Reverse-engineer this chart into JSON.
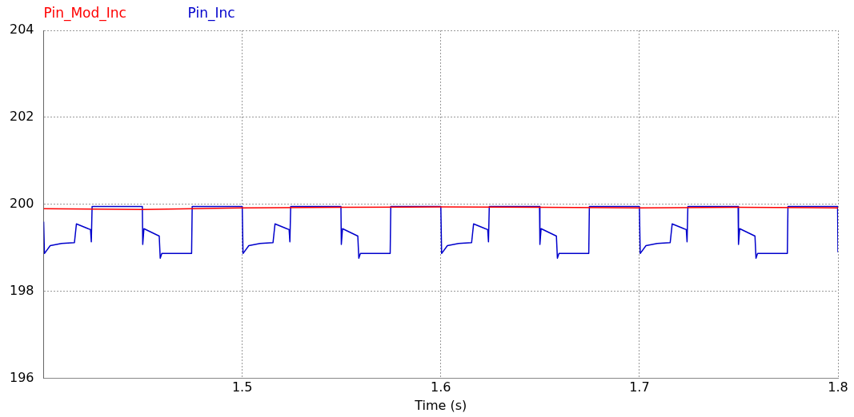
{
  "chart_data": {
    "type": "line",
    "xlabel": "Time (s)",
    "xlim": [
      1.4,
      1.8
    ],
    "xticks": [
      1.5,
      1.6,
      1.7,
      1.8
    ],
    "ylim": [
      196,
      204
    ],
    "yticks": [
      196,
      198,
      200,
      202,
      204
    ],
    "grid": true,
    "legend": "top left",
    "marker": "none",
    "series": [
      {
        "name": "Pin_Mod_Inc",
        "color": "#ff0000",
        "x": [
          1.4,
          1.45,
          1.5,
          1.55,
          1.6,
          1.65,
          1.7,
          1.75,
          1.8
        ],
        "values": [
          199.9,
          199.88,
          199.92,
          199.93,
          199.94,
          199.93,
          199.92,
          199.93,
          199.92
        ]
      },
      {
        "name": "Pin_Inc",
        "color": "#0000cc",
        "x": [
          1.4,
          1.4004,
          1.4033,
          1.409,
          1.4155,
          1.4165,
          1.4224,
          1.4236,
          1.424,
          1.4244,
          1.4497,
          1.4499,
          1.4505,
          1.4582,
          1.4587,
          1.4595,
          1.4745,
          1.4748,
          1.5,
          1.5004,
          1.5033,
          1.509,
          1.5155,
          1.5165,
          1.5224,
          1.5236,
          1.524,
          1.5244,
          1.5497,
          1.5499,
          1.5505,
          1.5582,
          1.5587,
          1.5595,
          1.5745,
          1.5748,
          1.6,
          1.6004,
          1.6033,
          1.609,
          1.6155,
          1.6165,
          1.6224,
          1.6236,
          1.624,
          1.6244,
          1.6497,
          1.6499,
          1.6505,
          1.6582,
          1.6587,
          1.6595,
          1.6745,
          1.6748,
          1.7,
          1.7004,
          1.7033,
          1.709,
          1.7155,
          1.7165,
          1.7224,
          1.7236,
          1.724,
          1.7244,
          1.7497,
          1.7499,
          1.7505,
          1.7582,
          1.7587,
          1.7595,
          1.7745,
          1.7748,
          1.7998,
          1.8
        ],
        "values": [
          199.6,
          198.87,
          199.05,
          199.1,
          199.12,
          199.55,
          199.44,
          199.42,
          199.14,
          199.95,
          199.95,
          199.08,
          199.44,
          199.27,
          198.76,
          198.87,
          198.87,
          199.95,
          199.95,
          198.87,
          199.05,
          199.1,
          199.12,
          199.55,
          199.44,
          199.42,
          199.14,
          199.95,
          199.95,
          199.08,
          199.44,
          199.27,
          198.76,
          198.87,
          198.87,
          199.95,
          199.95,
          198.87,
          199.05,
          199.1,
          199.12,
          199.55,
          199.44,
          199.42,
          199.14,
          199.95,
          199.95,
          199.08,
          199.44,
          199.27,
          198.76,
          198.87,
          198.87,
          199.95,
          199.95,
          198.87,
          199.05,
          199.1,
          199.12,
          199.55,
          199.44,
          199.42,
          199.14,
          199.95,
          199.95,
          199.08,
          199.44,
          199.27,
          198.76,
          198.87,
          198.87,
          199.95,
          199.95,
          198.9
        ]
      }
    ]
  }
}
